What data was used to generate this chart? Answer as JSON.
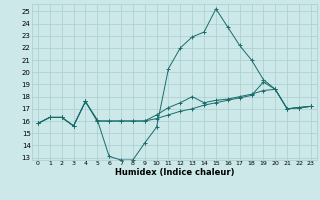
{
  "xlabel": "Humidex (Indice chaleur)",
  "bg_color": "#cce8e8",
  "line_color": "#1a6b6b",
  "grid_color": "#aacece",
  "xlim": [
    -0.5,
    23.5
  ],
  "ylim": [
    12.8,
    25.6
  ],
  "yticks": [
    13,
    14,
    15,
    16,
    17,
    18,
    19,
    20,
    21,
    22,
    23,
    24,
    25
  ],
  "xticks": [
    0,
    1,
    2,
    3,
    4,
    5,
    6,
    7,
    8,
    9,
    10,
    11,
    12,
    13,
    14,
    15,
    16,
    17,
    18,
    19,
    20,
    21,
    22,
    23
  ],
  "series1_x": [
    0,
    1,
    2,
    3,
    4,
    5,
    6,
    7,
    8,
    9,
    10,
    11,
    12,
    13,
    14,
    15,
    16,
    17,
    18,
    19,
    20,
    21,
    22,
    23
  ],
  "series1_y": [
    15.8,
    16.3,
    16.3,
    15.6,
    17.6,
    16.1,
    13.1,
    12.8,
    12.8,
    14.2,
    15.5,
    20.3,
    22.0,
    22.9,
    23.3,
    25.2,
    23.7,
    22.2,
    21.0,
    19.4,
    18.6,
    17.0,
    17.1,
    17.2
  ],
  "series2_x": [
    0,
    1,
    2,
    3,
    4,
    5,
    6,
    7,
    8,
    9,
    10,
    11,
    12,
    13,
    14,
    15,
    16,
    17,
    18,
    19,
    20,
    21,
    22,
    23
  ],
  "series2_y": [
    15.8,
    16.3,
    16.3,
    15.6,
    17.6,
    16.0,
    16.0,
    16.0,
    16.0,
    16.0,
    16.2,
    16.5,
    16.8,
    17.0,
    17.3,
    17.5,
    17.7,
    17.9,
    18.1,
    19.2,
    18.6,
    17.0,
    17.1,
    17.2
  ],
  "series3_x": [
    0,
    1,
    2,
    3,
    4,
    5,
    6,
    7,
    8,
    9,
    10,
    11,
    12,
    13,
    14,
    15,
    16,
    17,
    18,
    19,
    20,
    21,
    22,
    23
  ],
  "series3_y": [
    15.8,
    16.3,
    16.3,
    15.6,
    17.6,
    16.0,
    16.0,
    16.0,
    16.0,
    16.0,
    16.5,
    17.1,
    17.5,
    18.0,
    17.5,
    17.7,
    17.8,
    18.0,
    18.2,
    18.5,
    18.6,
    17.0,
    17.1,
    17.2
  ]
}
